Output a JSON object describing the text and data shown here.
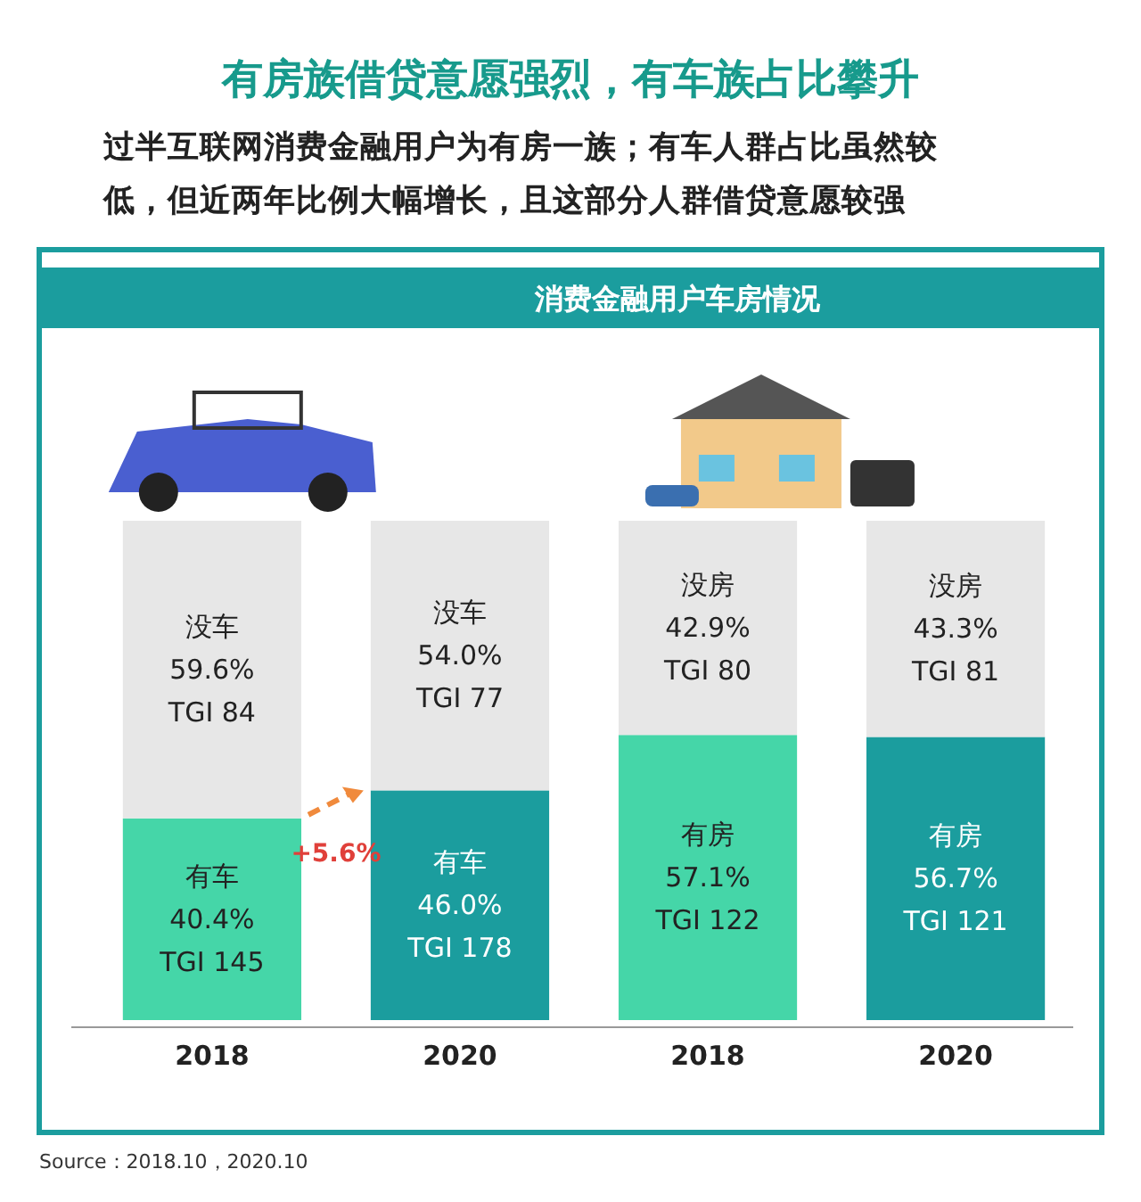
{
  "chart_data": {
    "type": "bar",
    "stacked": true,
    "title": "消费金融用户车房情况",
    "subtitle": "有房族借贷意愿强烈，有车族占比攀升",
    "categories": [
      "2018",
      "2020",
      "2018",
      "2020"
    ],
    "series": [
      {
        "colors": [
          "#45d6a8",
          "#1b9d9e",
          "#45d6a8",
          "#1b9d9e"
        ],
        "values": [
          40.4,
          46.0,
          57.1,
          56.7
        ],
        "value_labels": [
          "有车\n40.4%\nTGI 145",
          "有车\n46.0%\nTGI 178",
          "有房\n57.1%\nTGI 122",
          "有房\n56.7%\nTGI 121"
        ]
      },
      {
        "color": "#e7e7e7",
        "values": [
          59.6,
          54.0,
          42.9,
          43.3
        ],
        "value_labels": [
          "没车\n59.6%\nTGI 84",
          "没车\n54.0%\nTGI 77",
          "没房\n42.9%\nTGI 80",
          "没房\n43.3%\nTGI 81"
        ]
      }
    ],
    "annotations": [
      "过半互联网消费金融用户为有房一族；有车人群占比虽然较低，但近两年比例大幅增长，且这部分人群借贷意愿较强",
      "+5.6%",
      "Source：2018.10，2020.10"
    ]
  }
}
